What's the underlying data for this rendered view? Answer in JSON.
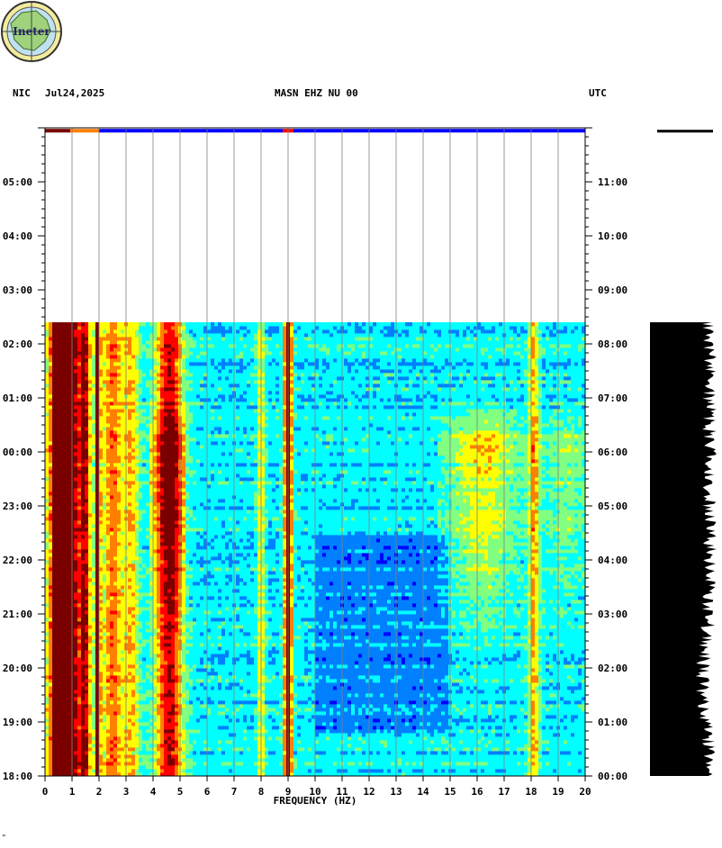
{
  "header": {
    "station": "NIC",
    "date": "Jul24,2025",
    "channel": "MASN EHZ NU 00",
    "tz": "UTC",
    "logo_text": "Ineter"
  },
  "footer_mark": "\"",
  "chart_data": {
    "type": "heatmap",
    "title": "MASN EHZ NU 00",
    "xlabel": "FREQUENCY (HZ)",
    "xlim": [
      0,
      20
    ],
    "x_ticks": [
      "0",
      "1",
      "2",
      "3",
      "4",
      "5",
      "6",
      "7",
      "8",
      "9",
      "10",
      "11",
      "12",
      "13",
      "14",
      "15",
      "16",
      "17",
      "18",
      "19",
      "20"
    ],
    "left_time_labels": [
      "18:00",
      "19:00",
      "20:00",
      "21:00",
      "22:00",
      "23:00",
      "00:00",
      "01:00",
      "02:00",
      "03:00",
      "04:00",
      "05:00"
    ],
    "right_time_labels": [
      "00:00",
      "01:00",
      "02:00",
      "03:00",
      "04:00",
      "05:00",
      "06:00",
      "07:00",
      "08:00",
      "09:00",
      "10:00",
      "11:00"
    ],
    "time_span_hours": 12,
    "data_end_hour": 8.4,
    "partial_row_hour": 11.93,
    "colormap": [
      "#00007a",
      "#0000ff",
      "#0080ff",
      "#00ffff",
      "#80ff80",
      "#ffff00",
      "#ff8000",
      "#ff0000",
      "#7a0000"
    ],
    "persistent_bands_hz": [
      {
        "center": 0.6,
        "width": 0.5,
        "intensity": 1.0
      },
      {
        "center": 1.0,
        "width": 0.15,
        "intensity": 0.7
      },
      {
        "center": 1.45,
        "width": 0.25,
        "intensity": 0.8
      },
      {
        "center": 1.95,
        "width": 0.1,
        "intensity": 0.95
      },
      {
        "center": 2.5,
        "width": 0.4,
        "intensity": 0.55
      },
      {
        "center": 3.2,
        "width": 0.3,
        "intensity": 0.4
      },
      {
        "center": 4.6,
        "width": 0.5,
        "intensity": 0.75
      },
      {
        "center": 8.0,
        "width": 0.15,
        "intensity": 0.35
      },
      {
        "center": 9.0,
        "width": 0.15,
        "intensity": 1.0
      },
      {
        "center": 18.1,
        "width": 0.2,
        "intensity": 0.45
      }
    ],
    "grid": true
  }
}
